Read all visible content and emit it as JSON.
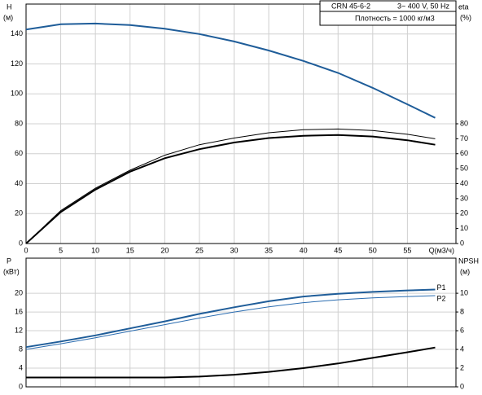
{
  "chart_data": [
    {
      "type": "line",
      "title": "CRN 45-6-2",
      "subtitle": "3~ 400 V, 50 Hz",
      "annotation": "Плотность = 1000 кг/м3",
      "ylabel": "H",
      "yunit": "(м)",
      "y2label": "eta",
      "y2unit": "(%)",
      "xlabel": "Q(м3/ч)",
      "x": [
        0,
        5,
        10,
        15,
        20,
        25,
        30,
        35,
        40,
        45,
        50,
        55,
        59
      ],
      "xlim": [
        0,
        62
      ],
      "xticks": [
        0,
        5,
        10,
        15,
        20,
        25,
        30,
        35,
        40,
        45,
        50,
        55
      ],
      "ylim": [
        0,
        160
      ],
      "yticks": [
        0,
        20,
        40,
        60,
        80,
        100,
        120,
        140
      ],
      "y2lim": [
        0,
        160
      ],
      "y2ticks": [
        0,
        10,
        20,
        30,
        40,
        50,
        60,
        70,
        80
      ],
      "grid": true,
      "series": [
        {
          "color": "#1f5d99",
          "width": 2,
          "values": [
            143,
            146.5,
            147,
            146,
            143.5,
            140,
            135,
            129,
            122,
            114,
            104,
            93,
            84
          ]
        },
        {
          "color": "#000000",
          "width": 1,
          "axis": "y2",
          "values": [
            0,
            22,
            37,
            49,
            59,
            66,
            70.5,
            74,
            76,
            76.5,
            75.5,
            73,
            70
          ]
        },
        {
          "color": "#000000",
          "width": 2,
          "axis": "y2",
          "values": [
            0,
            21,
            36,
            48,
            57,
            63,
            67.5,
            70.5,
            72,
            72.5,
            71.5,
            69,
            66
          ]
        }
      ]
    },
    {
      "type": "line",
      "ylabel": "P",
      "yunit": "(кВт)",
      "y2label": "NPSH",
      "y2unit": "(м)",
      "x": [
        0,
        5,
        10,
        15,
        20,
        25,
        30,
        35,
        40,
        45,
        50,
        55,
        59
      ],
      "xlim": [
        0,
        62
      ],
      "ylim": [
        0,
        27.5
      ],
      "yticks": [
        0,
        4,
        8,
        12,
        16,
        20
      ],
      "y2lim": [
        0,
        13.75
      ],
      "y2ticks": [
        0,
        2,
        4,
        6,
        8,
        10
      ],
      "grid": true,
      "series": [
        {
          "name": "P1",
          "color": "#1f5d99",
          "width": 2,
          "values": [
            8.5,
            9.7,
            11,
            12.5,
            14,
            15.6,
            17,
            18.3,
            19.3,
            19.9,
            20.3,
            20.6,
            20.8
          ]
        },
        {
          "name": "P2",
          "color": "#2a6cb0",
          "width": 1,
          "values": [
            8,
            9.2,
            10.5,
            11.9,
            13.3,
            14.7,
            16,
            17.1,
            18,
            18.6,
            19,
            19.3,
            19.5
          ]
        },
        {
          "color": "#000000",
          "width": 2,
          "axis": "y2",
          "values": [
            1.0,
            1.0,
            1.0,
            1.0,
            1.0,
            1.1,
            1.3,
            1.6,
            2.0,
            2.5,
            3.1,
            3.7,
            4.2
          ]
        }
      ]
    }
  ]
}
